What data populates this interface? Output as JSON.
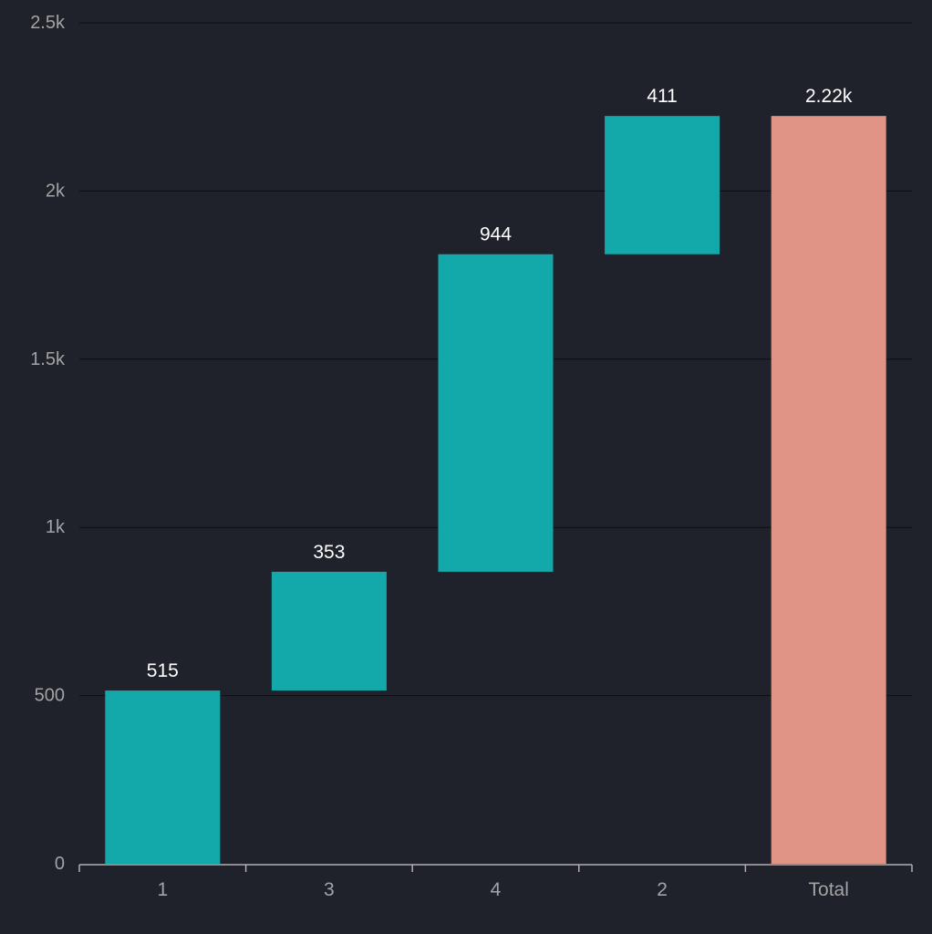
{
  "chart_data": {
    "type": "bar",
    "subtype": "waterfall",
    "categories": [
      "1",
      "3",
      "4",
      "2",
      "Total"
    ],
    "values": [
      515,
      353,
      944,
      411,
      2223
    ],
    "data_labels": [
      "515",
      "353",
      "944",
      "411",
      "2.22k"
    ],
    "is_total": [
      false,
      false,
      false,
      false,
      true
    ],
    "title": "",
    "xlabel": "",
    "ylabel": "",
    "ylim": [
      0,
      2500
    ],
    "y_ticks": [
      0,
      500,
      1000,
      1500,
      2000,
      2500
    ],
    "y_tick_labels": [
      "0",
      "500",
      "1k",
      "1.5k",
      "2k",
      "2.5k"
    ],
    "grid": true,
    "legend": "none",
    "colors": {
      "increase": "#13a9aa",
      "total": "#e09485",
      "background": "#20222b",
      "gridline": "#0d0e12",
      "axis": "#b0b0b0",
      "tick_text": "#a3a3a3",
      "label_text": "#ffffff"
    }
  }
}
